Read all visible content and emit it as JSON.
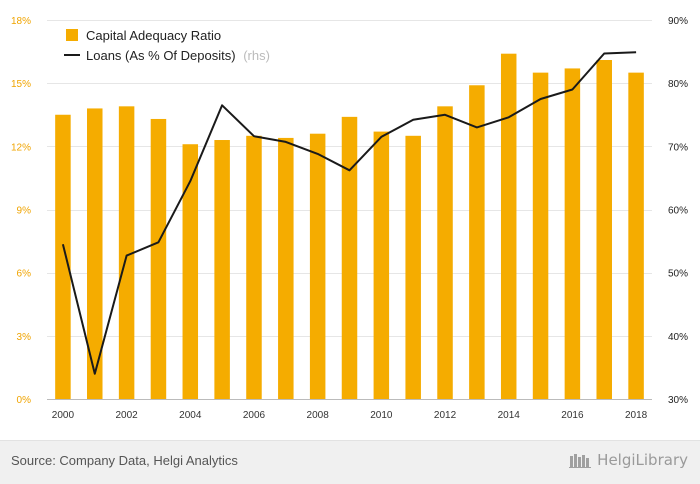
{
  "colors": {
    "bar": "#f5ac00",
    "line": "#1a1a1a",
    "left_axis": "#f0a400",
    "right_axis": "#222222",
    "grid": "#e6e6e6",
    "rhs_note": "#bbbbbb"
  },
  "legend": {
    "bar_label": "Capital Adequacy Ratio",
    "line_label": "Loans (As % Of Deposits)",
    "line_note": "(rhs)"
  },
  "source": "Source: Company Data, Helgi Analytics",
  "brand": {
    "name": "HelgiLibrary",
    "icon": "library-books-icon"
  },
  "chart_data": {
    "type": "bar",
    "categories": [
      "2000",
      "2001",
      "2002",
      "2003",
      "2004",
      "2005",
      "2006",
      "2007",
      "2008",
      "2009",
      "2010",
      "2011",
      "2012",
      "2013",
      "2014",
      "2015",
      "2016",
      "2017",
      "2018"
    ],
    "x_tick_labels": [
      "2000",
      "2002",
      "2004",
      "2006",
      "2008",
      "2010",
      "2012",
      "2014",
      "2016",
      "2018"
    ],
    "series": [
      {
        "name": "Capital Adequacy Ratio",
        "type": "bar",
        "axis": "left",
        "values": [
          13.5,
          13.8,
          13.9,
          13.3,
          12.1,
          12.3,
          12.5,
          12.4,
          12.6,
          13.4,
          12.7,
          12.5,
          13.9,
          14.9,
          16.4,
          15.5,
          15.7,
          16.1,
          15.5
        ]
      },
      {
        "name": "Loans (As % Of Deposits)",
        "type": "line",
        "axis": "right",
        "values": [
          54.5,
          34.0,
          52.7,
          54.8,
          64.5,
          76.5,
          71.6,
          70.7,
          68.8,
          66.2,
          71.5,
          74.2,
          75.0,
          73.0,
          74.6,
          77.5,
          79.0,
          84.7,
          84.9
        ]
      }
    ],
    "y_left": {
      "min": 0,
      "max": 18,
      "ticks": [
        0,
        3,
        6,
        9,
        12,
        15,
        18
      ],
      "tick_labels": [
        "0%",
        "3%",
        "6%",
        "9%",
        "12%",
        "15%",
        "18%"
      ]
    },
    "y_right": {
      "min": 30,
      "max": 90,
      "ticks": [
        30,
        40,
        50,
        60,
        70,
        80,
        90
      ],
      "tick_labels": [
        "30%",
        "40%",
        "50%",
        "60%",
        "70%",
        "80%",
        "90%"
      ]
    },
    "grid": true,
    "legend_position": "top-left"
  }
}
